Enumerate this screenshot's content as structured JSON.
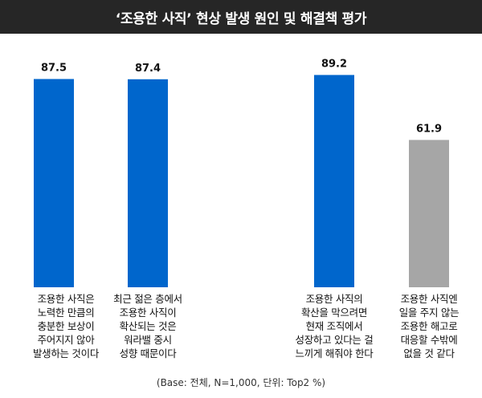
{
  "title": "‘조용한 사직’ 현상 발생 원인 및 해결책 평가",
  "chart_data": {
    "type": "bar",
    "title": "‘조용한 사직’ 현상 발생 원인 및 해결책 평가",
    "categories": [
      "조용한 사직은\n노력한 만큼의\n충분한 보상이\n주어지지 않아\n발생하는 것이다",
      "최근 젊은 층에서\n조용한 사직이\n확산되는 것은\n워라밸 중시\n성향 때문이다",
      "조용한 사직의\n확산을 막으려면\n현재 조직에서\n성장하고 있다는 걸\n느끼게 해줘야 한다",
      "조용한 사직엔\n일을 주지 않는\n조용한 해고로\n대응할 수밖에\n없을 것 같다"
    ],
    "values": [
      87.5,
      87.4,
      89.2,
      61.9
    ],
    "value_labels": [
      "87.5",
      "87.4",
      "89.2",
      "61.9"
    ],
    "ylim": [
      0,
      100
    ],
    "grid": false,
    "colors": [
      "#0066CC",
      "#0066CC",
      "#0066CC",
      "#A6A6A6"
    ],
    "xlabel": "",
    "ylabel": ""
  },
  "footnote": "(Base: 전체, N=1,000, 단위: Top2 %)"
}
